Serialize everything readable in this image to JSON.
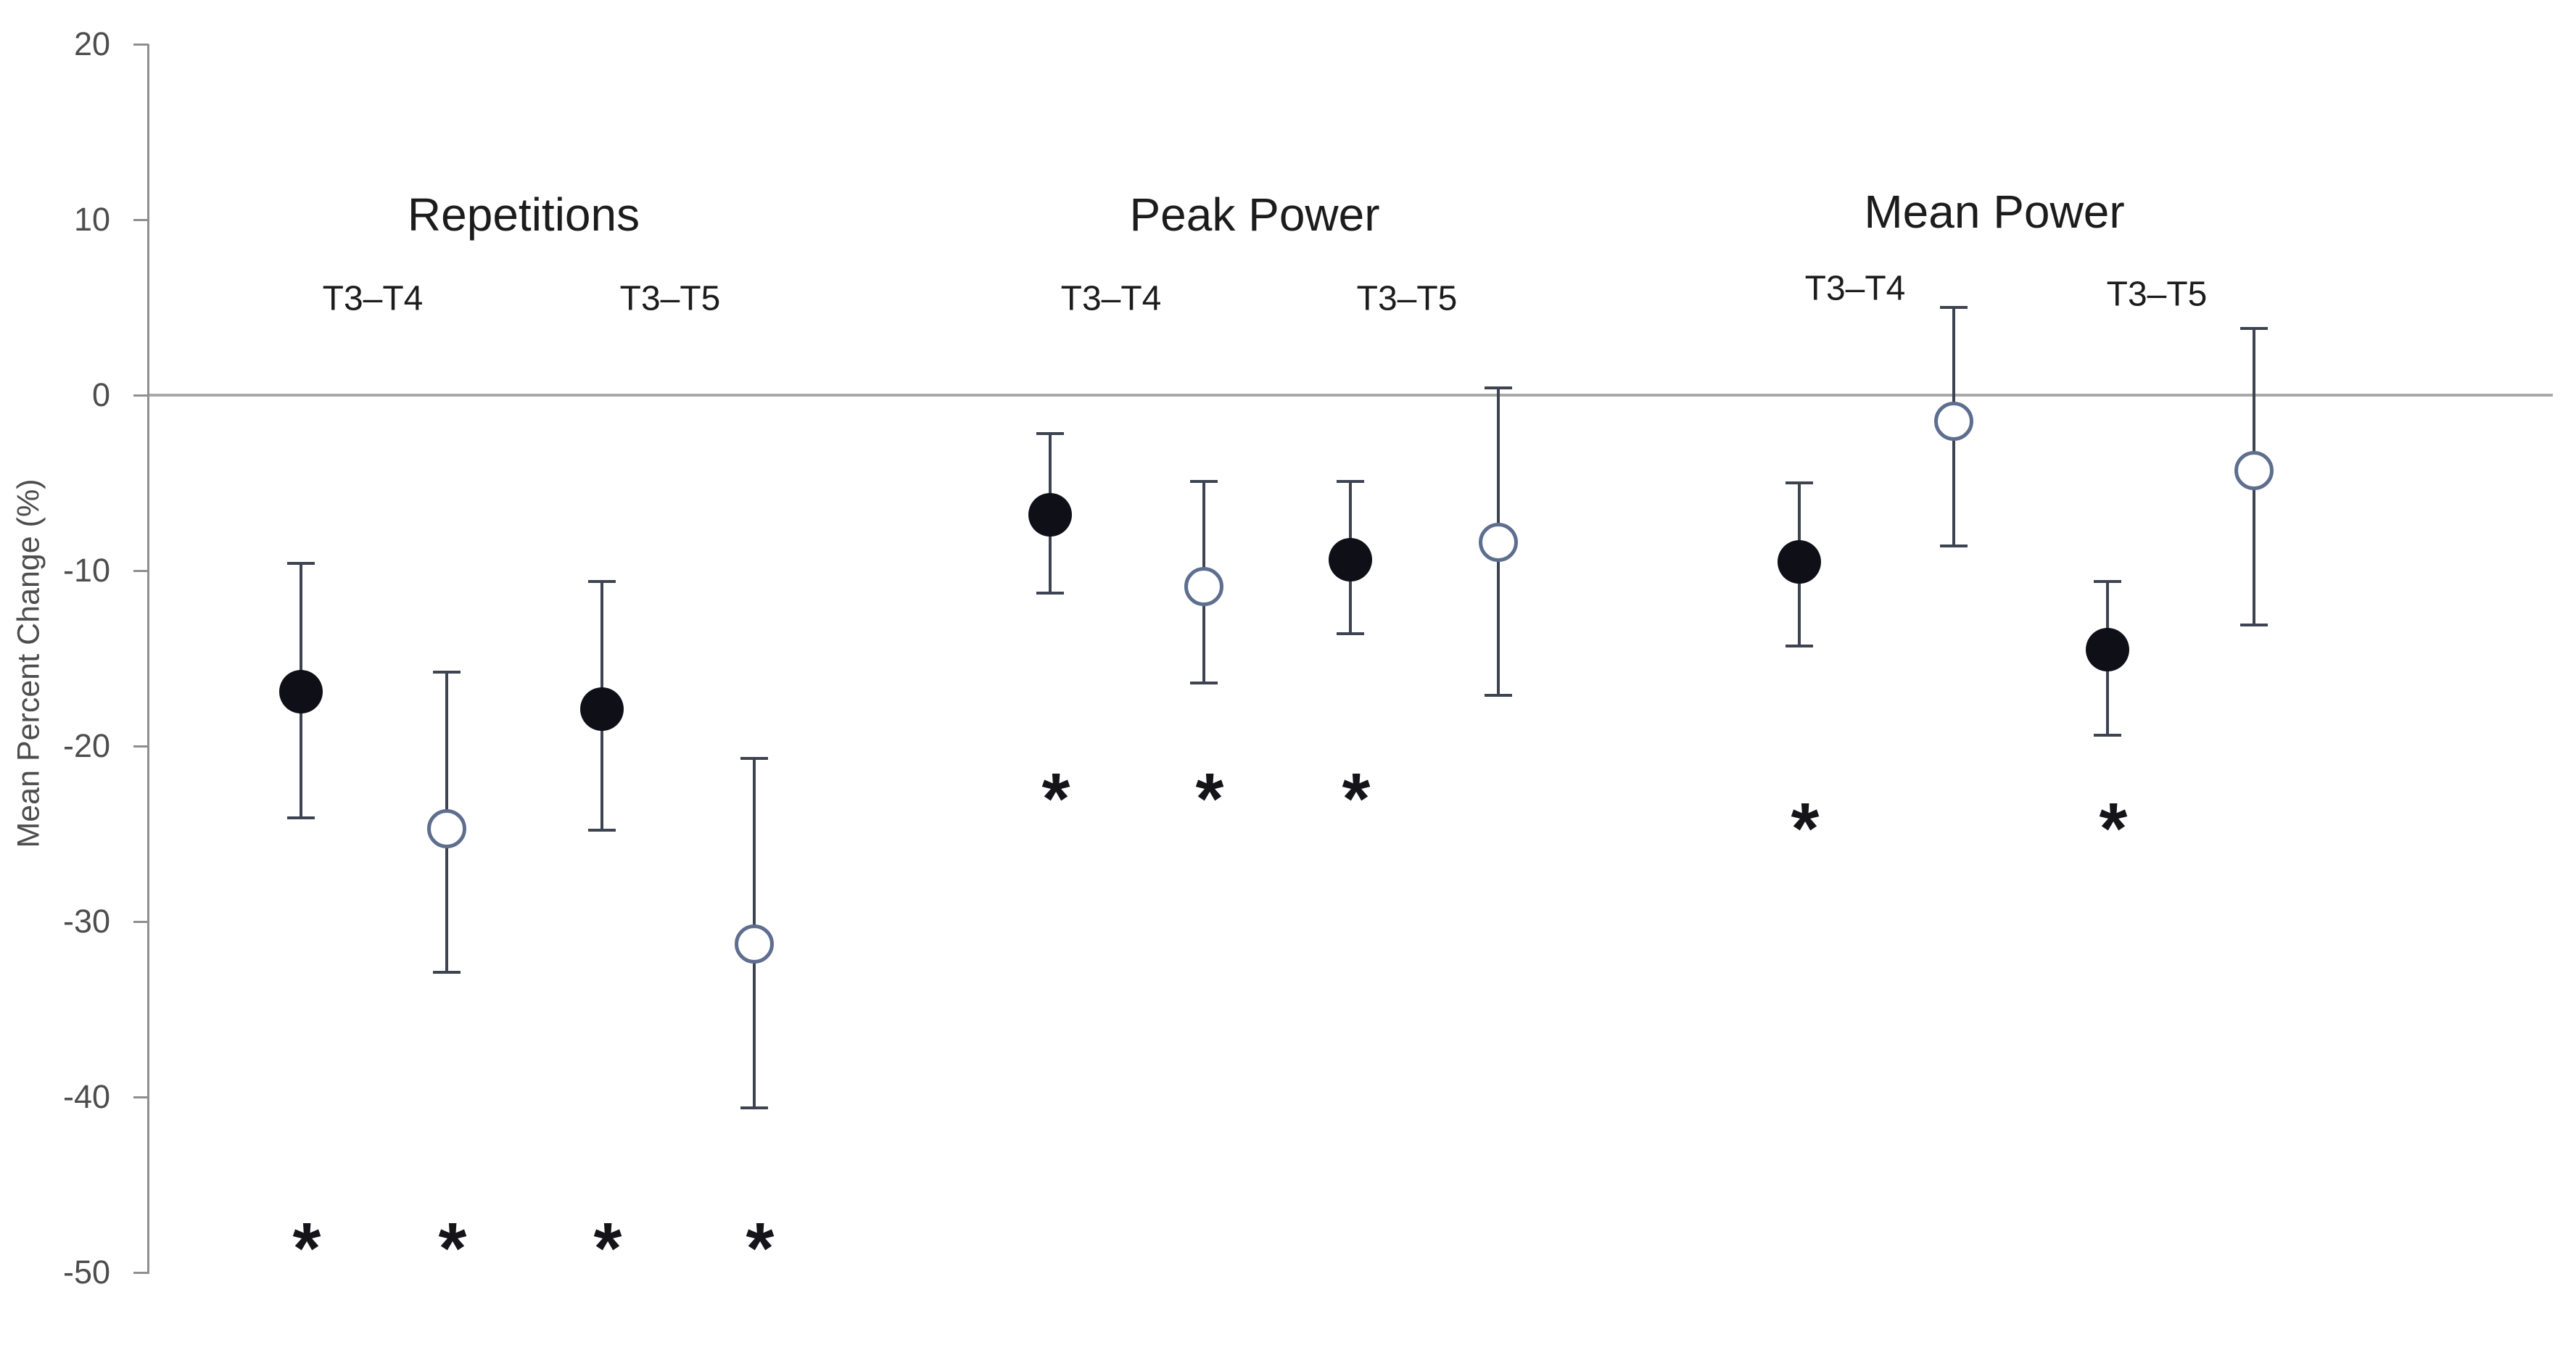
{
  "chart_data": {
    "type": "scatter",
    "title": "",
    "xlabel": "",
    "ylabel": "Mean Percent Change (%)",
    "y_axis": {
      "min": -50,
      "max": 20,
      "tick_step": 10,
      "ticks": [
        {
          "value": 20,
          "label": "20"
        },
        {
          "value": 10,
          "label": "10"
        },
        {
          "value": 0,
          "label": "0"
        },
        {
          "value": -10,
          "label": "-10"
        },
        {
          "value": -20,
          "label": "-20"
        },
        {
          "value": -30,
          "label": "-30"
        },
        {
          "value": -40,
          "label": "-40"
        },
        {
          "value": -50,
          "label": "-50"
        }
      ]
    },
    "grid": false,
    "legend": "none",
    "zero_reference_line": 0,
    "significance_marker": "*",
    "marker_series": [
      {
        "id": "filled",
        "style": "filled black circle"
      },
      {
        "id": "open",
        "style": "open circle, blue-gray outline"
      }
    ],
    "groups": [
      {
        "label": "Repetitions",
        "asterisk_y_value": -48,
        "pairs": [
          {
            "label": "T3–T4",
            "points": [
              {
                "marker": "filled",
                "mean": -16.9,
                "upper": -9.6,
                "lower": -24.1,
                "significant": true
              },
              {
                "marker": "open",
                "mean": -24.7,
                "upper": -15.8,
                "lower": -32.9,
                "significant": true
              }
            ]
          },
          {
            "label": "T3–T5",
            "points": [
              {
                "marker": "filled",
                "mean": -17.9,
                "upper": -10.6,
                "lower": -24.8,
                "significant": true
              },
              {
                "marker": "open",
                "mean": -31.3,
                "upper": -20.7,
                "lower": -40.6,
                "significant": true
              }
            ]
          }
        ]
      },
      {
        "label": "Peak Power",
        "asterisk_y_value": -22.4,
        "pairs": [
          {
            "label": "T3–T4",
            "points": [
              {
                "marker": "filled",
                "mean": -6.8,
                "upper": -2.2,
                "lower": -11.3,
                "significant": true
              },
              {
                "marker": "open",
                "mean": -10.9,
                "upper": -4.9,
                "lower": -16.4,
                "significant": true
              }
            ]
          },
          {
            "label": "T3–T5",
            "points": [
              {
                "marker": "filled",
                "mean": -9.4,
                "upper": -4.9,
                "lower": -13.6,
                "significant": true
              },
              {
                "marker": "open",
                "mean": -8.4,
                "upper": 0.4,
                "lower": -17.1,
                "significant": false
              }
            ]
          }
        ]
      },
      {
        "label": "Mean Power",
        "asterisk_y_value": -24.1,
        "pairs": [
          {
            "label": "T3–T4",
            "points": [
              {
                "marker": "filled",
                "mean": -9.5,
                "upper": -5.0,
                "lower": -14.3,
                "significant": true
              },
              {
                "marker": "open",
                "mean": -1.5,
                "upper": 5.0,
                "lower": -8.6,
                "significant": false
              }
            ]
          },
          {
            "label": "T3–T5",
            "points": [
              {
                "marker": "filled",
                "mean": -14.5,
                "upper": -10.6,
                "lower": -19.4,
                "significant": true
              },
              {
                "marker": "open",
                "mean": -4.3,
                "upper": 3.8,
                "lower": -13.1,
                "significant": false
              }
            ]
          }
        ]
      }
    ],
    "colors": {
      "filled_marker": "#0f0f18",
      "open_marker_stroke": "#5e6e8e",
      "open_marker_fill": "#ffffff",
      "error_bar": "#3d4350",
      "axis": "#8f8f8f",
      "zero_line": "#a9a9a9",
      "tick_label": "#4d4d4d",
      "text": "#1c1c1c",
      "background": "#ffffff"
    }
  }
}
